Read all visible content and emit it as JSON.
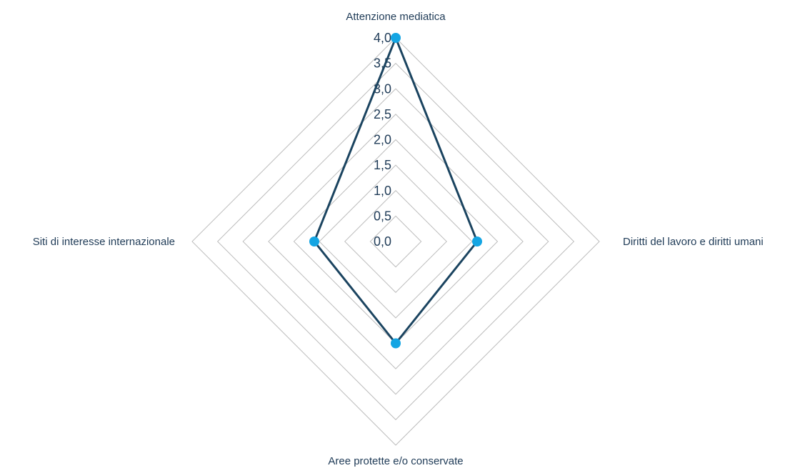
{
  "chart_data": {
    "type": "radar",
    "categories": [
      "Attenzione mediatica",
      "Diritti del lavoro e diritti umani",
      "Aree protette e/o conservate",
      "Siti di interesse internazionale"
    ],
    "series": [
      {
        "values": [
          4.0,
          1.6,
          2.0,
          1.6
        ]
      }
    ],
    "rlim": [
      0,
      4.0
    ],
    "ticks": [
      "0,0",
      "0,5",
      "1,0",
      "1,5",
      "2,0",
      "2,5",
      "3,0",
      "3,5",
      "4,0"
    ],
    "grid": true,
    "legend": "none"
  },
  "colors": {
    "series_line": "#1b4460",
    "series_marker": "#14a5e3",
    "grid": "#bdbdbd",
    "text": "#1f3b57"
  }
}
